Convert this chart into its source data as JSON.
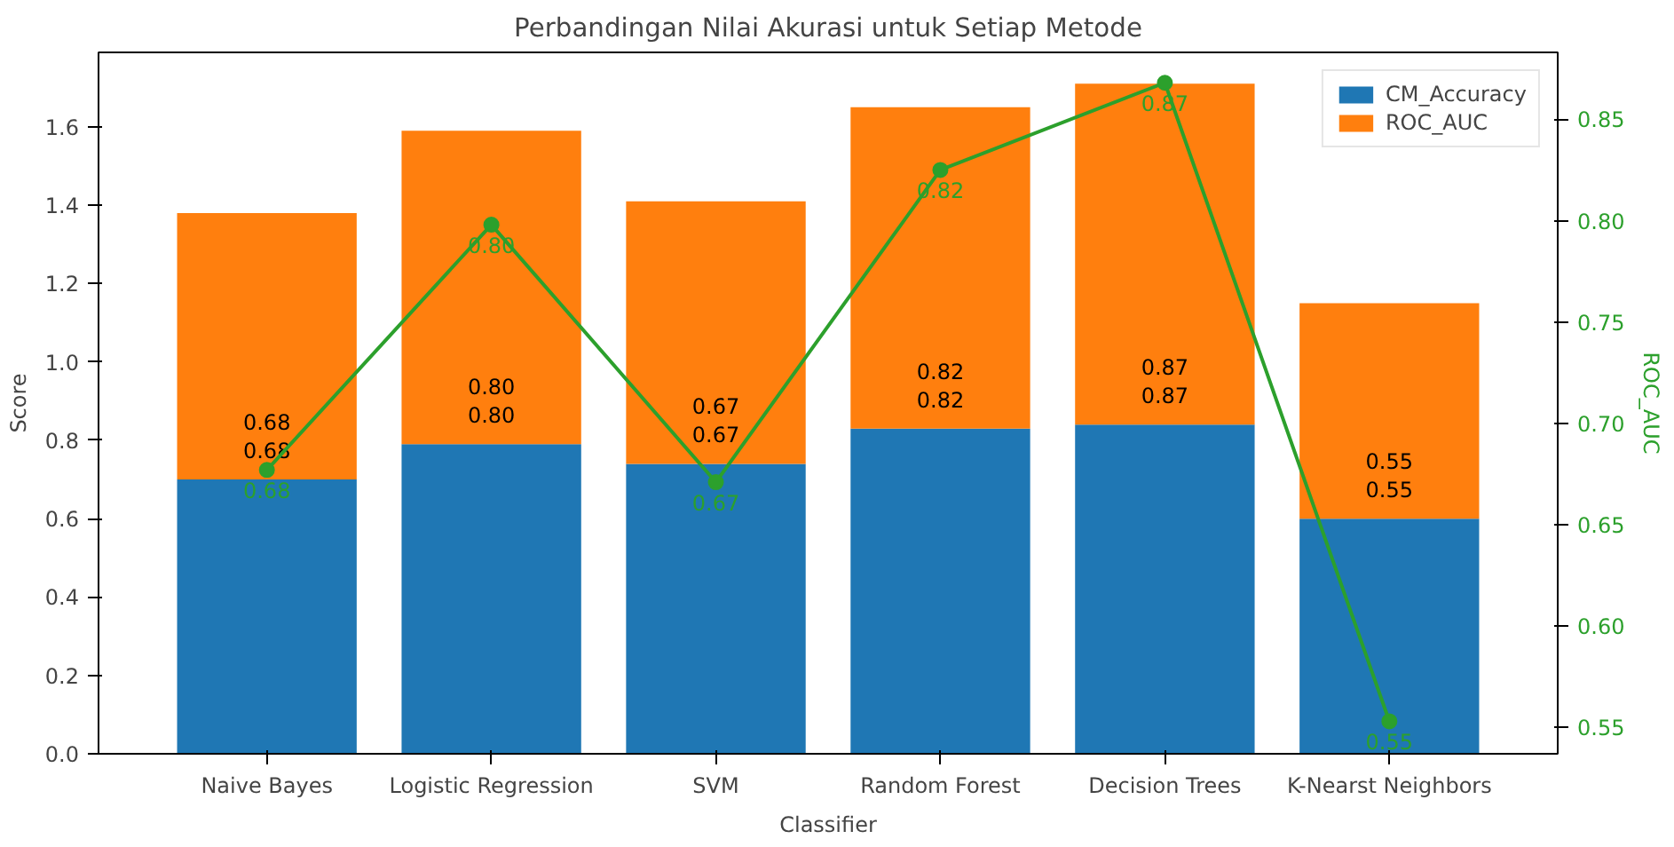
{
  "chart_data": {
    "type": "bar",
    "title": "Perbandingan Nilai Akurasi untuk Setiap Metode",
    "xlabel": "Classifier",
    "ylabel": "Score",
    "y2label": "ROC_AUC",
    "categories": [
      "Naive Bayes",
      "Logistic Regression",
      "SVM",
      "Random Forest",
      "Decision Trees",
      "K-Nearst Neighbors"
    ],
    "stacked": true,
    "ylim": [
      0,
      1.79
    ],
    "yticks": [
      {
        "value": 0,
        "label": "0.0"
      },
      0.2,
      0.4,
      0.6,
      0.8,
      {
        "value": 1,
        "label": "1.0"
      },
      1.2,
      1.4,
      1.6
    ],
    "y2lim": [
      0.537,
      0.883
    ],
    "y2ticks": [
      0.55,
      {
        "value": 0.6,
        "label": "0.60"
      },
      0.65,
      {
        "value": 0.7,
        "label": "0.70"
      },
      0.75,
      {
        "value": 0.8,
        "label": "0.80"
      },
      0.85
    ],
    "series": [
      {
        "name": "CM_Accuracy",
        "color": "#1f77b4",
        "values": [
          0.7,
          0.79,
          0.74,
          0.83,
          0.84,
          0.6
        ]
      },
      {
        "name": "ROC_AUC",
        "color": "#ff7f0e",
        "values": [
          0.68,
          0.8,
          0.67,
          0.82,
          0.87,
          0.55
        ],
        "value_labels": [
          "0.68",
          "0.80",
          "0.67",
          "0.82",
          "0.87",
          "0.55"
        ]
      },
      {
        "type": "line",
        "axis": "y2",
        "color": "#2ca02c",
        "marker": "circle",
        "values": [
          0.677,
          0.798,
          0.671,
          0.825,
          0.868,
          0.553
        ],
        "value_labels": [
          "0.68",
          "0.80",
          "0.67",
          "0.82",
          "0.87",
          "0.55"
        ]
      }
    ],
    "annotations": [
      "0.68",
      "0.80",
      "0.67",
      "0.82",
      "0.87",
      "0.55"
    ],
    "legend": "top right",
    "grid": false
  }
}
